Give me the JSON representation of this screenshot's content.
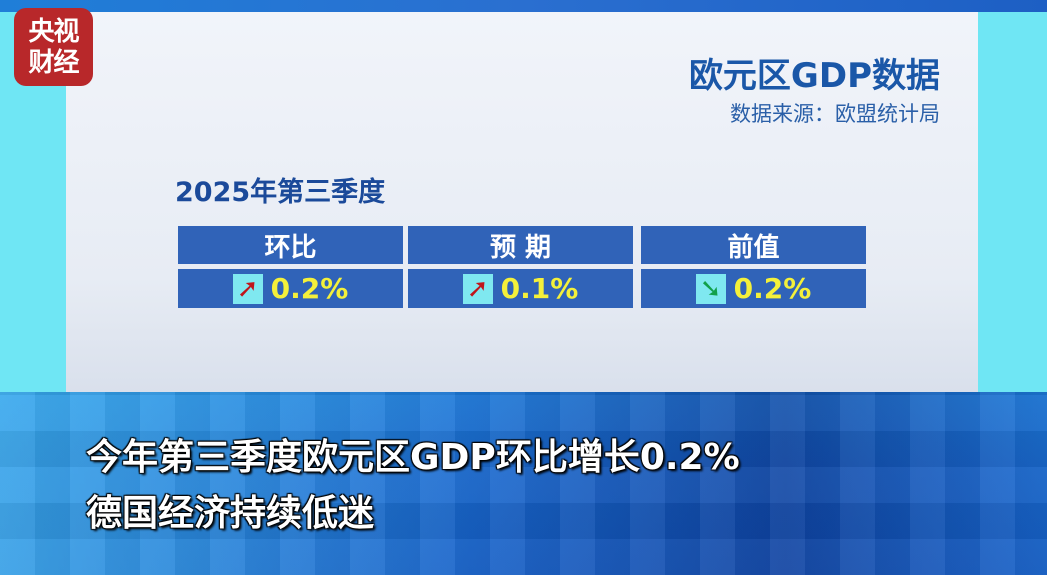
{
  "logo": {
    "line1": "央视",
    "line2": "财经"
  },
  "header": {
    "title": "欧元区GDP数据",
    "source": "数据来源：欧盟统计局"
  },
  "period": "2025年第三季度",
  "table": [
    {
      "label": "环比",
      "value": "0.2%",
      "arrow": "arrow-up-right-icon",
      "direction": "up"
    },
    {
      "label": "预 期",
      "value": "0.1%",
      "arrow": "arrow-up-right-icon",
      "direction": "up"
    },
    {
      "label": "前值",
      "value": "0.2%",
      "arrow": "arrow-down-right-icon",
      "direction": "down"
    }
  ],
  "subtitle": {
    "line1": "今年第三季度欧元区GDP环比增长0.2%",
    "line2": "德国经济持续低迷"
  },
  "colors": {
    "header_cell": "#3063b8",
    "value_text": "#f4f03a",
    "up_arrow": "#c0141a",
    "down_arrow": "#12a04a",
    "logo": "#b8282a"
  }
}
